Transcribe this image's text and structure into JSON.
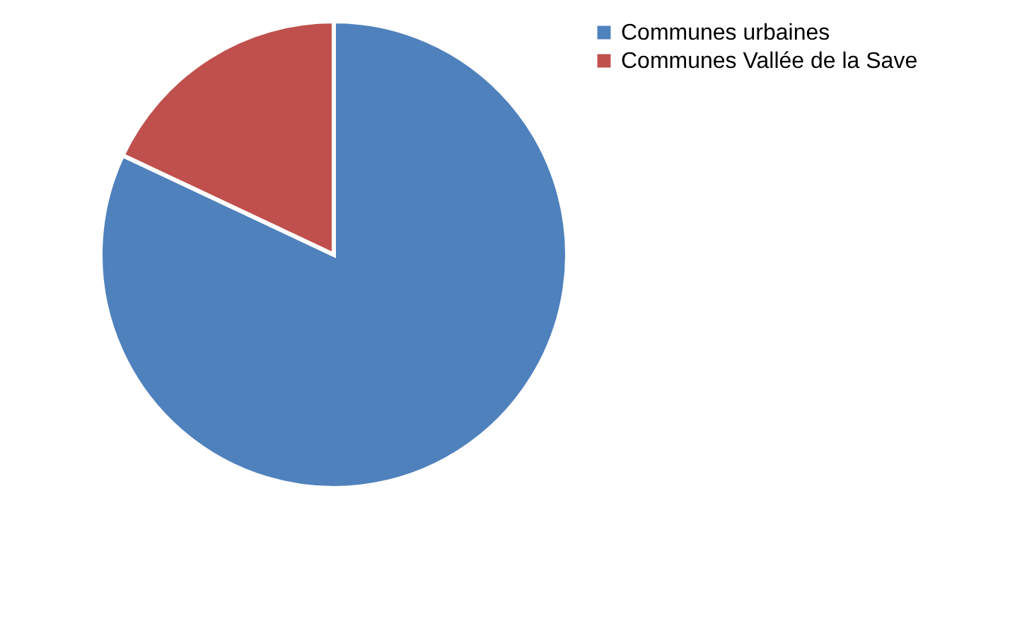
{
  "chart_data": {
    "type": "pie",
    "categories": [
      "Communes urbaines",
      "Communes Vallée de la Save"
    ],
    "values": [
      82,
      18
    ],
    "colors": [
      "#4f81bd",
      "#c0504d"
    ],
    "legend": "right"
  }
}
